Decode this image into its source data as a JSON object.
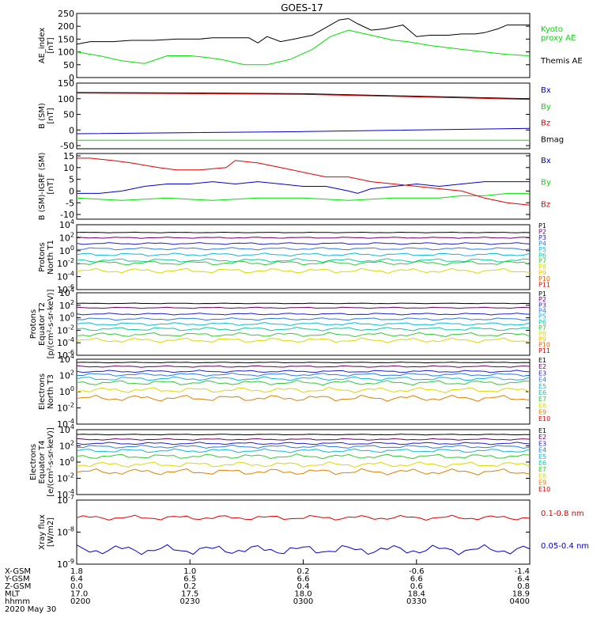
{
  "title": "GOES-17",
  "date_label": "2020 May 30",
  "colors": {
    "black": "#000000",
    "green": "#00e000",
    "blue": "#0000cc",
    "red": "#dd0000",
    "p": [
      "#000000",
      "#6a006a",
      "#2222cc",
      "#2a7de0",
      "#10b8d8",
      "#10c9a0",
      "#35c835",
      "#d9d900",
      "#f4c000",
      "#e06000",
      "#d00000"
    ],
    "e": [
      "#000000",
      "#6a006a",
      "#2222cc",
      "#2a7de0",
      "#10b8d8",
      "#10c9a0",
      "#35c835",
      "#d9d900",
      "#e08000",
      "#d00000"
    ]
  },
  "x_axis": {
    "ticks": [
      0,
      0.25,
      0.5,
      0.75,
      1.0
    ],
    "rows": [
      {
        "label": "X-GSM",
        "values": [
          "1.8",
          "1.0",
          "0.2",
          "-0.6",
          "-1.4"
        ]
      },
      {
        "label": "Y-GSM",
        "values": [
          "6.4",
          "6.5",
          "6.6",
          "6.6",
          "6.4"
        ]
      },
      {
        "label": "Z-GSM",
        "values": [
          "0.0",
          "0.2",
          "0.4",
          "0.6",
          "0.8"
        ]
      },
      {
        "label": "MLT",
        "values": [
          "17.0",
          "17.5",
          "18.0",
          "18.4",
          "18.9"
        ]
      },
      {
        "label": "hhmm",
        "values": [
          "0200",
          "0230",
          "0300",
          "0330",
          "0400"
        ]
      }
    ]
  },
  "chart_data": [
    {
      "type": "line",
      "panel": "ae",
      "ylabel": [
        "AE_index",
        "[nT]"
      ],
      "ylim": [
        0,
        250
      ],
      "log": false,
      "yticks": [
        0,
        50,
        100,
        150,
        200,
        250
      ],
      "legend": [
        {
          "text": "Kyoto",
          "color": "#00e000"
        },
        {
          "text": "proxy AE",
          "color": "#00e000"
        },
        {
          "text": "Themis AE",
          "color": "#000000"
        }
      ],
      "series": [
        {
          "name": "Themis AE",
          "color": "#000000",
          "x": [
            0,
            0.03,
            0.08,
            0.12,
            0.17,
            0.22,
            0.27,
            0.3,
            0.35,
            0.38,
            0.4,
            0.42,
            0.45,
            0.48,
            0.52,
            0.55,
            0.58,
            0.6,
            0.62,
            0.65,
            0.68,
            0.72,
            0.75,
            0.78,
            0.82,
            0.85,
            0.88,
            0.9,
            0.93,
            0.95,
            1.0
          ],
          "y": [
            130,
            140,
            140,
            145,
            145,
            150,
            150,
            155,
            155,
            155,
            135,
            160,
            140,
            150,
            165,
            195,
            225,
            230,
            210,
            185,
            190,
            205,
            160,
            165,
            165,
            170,
            170,
            175,
            190,
            205,
            205
          ]
        },
        {
          "name": "Kyoto proxy AE",
          "color": "#00e000",
          "x": [
            0,
            0.05,
            0.1,
            0.15,
            0.2,
            0.25,
            0.28,
            0.32,
            0.37,
            0.42,
            0.47,
            0.52,
            0.56,
            0.6,
            0.65,
            0.7,
            0.73,
            0.78,
            0.85,
            0.9,
            0.95,
            1.0
          ],
          "y": [
            100,
            85,
            65,
            55,
            85,
            85,
            80,
            70,
            50,
            50,
            70,
            110,
            160,
            185,
            165,
            145,
            140,
            125,
            110,
            100,
            90,
            85
          ]
        }
      ]
    },
    {
      "type": "line",
      "panel": "bsm",
      "ylabel": [
        "B (SM)",
        "[nT]"
      ],
      "ylim": [
        -60,
        150
      ],
      "log": false,
      "yticks": [
        -50,
        0,
        50,
        100,
        150
      ],
      "legend": [
        {
          "text": "Bx",
          "color": "#0000cc"
        },
        {
          "text": "By",
          "color": "#00e000"
        },
        {
          "text": "Bz",
          "color": "#dd0000"
        },
        {
          "text": "Bmag",
          "color": "#000000"
        }
      ],
      "series": [
        {
          "name": "Bx",
          "color": "#0000cc",
          "x": [
            0,
            0.5,
            1.0
          ],
          "y": [
            -12,
            -5,
            5
          ]
        },
        {
          "name": "By",
          "color": "#00e000",
          "x": [
            0,
            0.5,
            1.0
          ],
          "y": [
            -33,
            -33,
            -33
          ]
        },
        {
          "name": "Bmag",
          "color": "#000000",
          "x": [
            0,
            0.3,
            0.5,
            1.0
          ],
          "y": [
            120,
            118,
            116,
            100
          ]
        },
        {
          "name": "Bz",
          "color": "#dd0000",
          "x": [
            0,
            0.3,
            0.5,
            1.0
          ],
          "y": [
            118,
            116,
            114,
            98
          ]
        }
      ]
    },
    {
      "type": "line",
      "panel": "digrf",
      "ylabel": [
        "B (SM)-IGRF (SM)",
        "[nT]"
      ],
      "ylim": [
        -12,
        16
      ],
      "log": false,
      "yticks": [
        -10,
        -5,
        0,
        5,
        10,
        15
      ],
      "legend": [
        {
          "text": "Bx",
          "color": "#0000cc"
        },
        {
          "text": "By",
          "color": "#00e000"
        },
        {
          "text": "Bz",
          "color": "#dd0000"
        }
      ],
      "series": [
        {
          "name": "Bx",
          "color": "#0000cc",
          "x": [
            0,
            0.05,
            0.1,
            0.15,
            0.2,
            0.25,
            0.3,
            0.35,
            0.4,
            0.45,
            0.5,
            0.55,
            0.6,
            0.62,
            0.65,
            0.7,
            0.75,
            0.8,
            0.85,
            0.9,
            0.95,
            1.0
          ],
          "y": [
            -1,
            -1,
            0,
            2,
            3,
            3,
            4,
            3,
            4,
            3,
            2,
            2,
            0,
            -1,
            1,
            2,
            3,
            2,
            3,
            4,
            4,
            4
          ]
        },
        {
          "name": "By",
          "color": "#00e000",
          "x": [
            0,
            0.1,
            0.2,
            0.3,
            0.4,
            0.5,
            0.6,
            0.7,
            0.8,
            0.85,
            0.9,
            0.95,
            1.0
          ],
          "y": [
            -3,
            -4,
            -3,
            -4,
            -3,
            -3,
            -4,
            -3,
            -3,
            -2,
            -2,
            -1,
            -1
          ]
        },
        {
          "name": "Bz",
          "color": "#dd0000",
          "x": [
            0,
            0.03,
            0.08,
            0.12,
            0.18,
            0.22,
            0.27,
            0.33,
            0.35,
            0.4,
            0.45,
            0.5,
            0.55,
            0.6,
            0.65,
            0.7,
            0.75,
            0.8,
            0.85,
            0.9,
            0.95,
            1.0
          ],
          "y": [
            14,
            14,
            13,
            12,
            10,
            9,
            9,
            10,
            13,
            12,
            10,
            8,
            6,
            6,
            4,
            3,
            2,
            1,
            0,
            -3,
            -5,
            -6
          ]
        }
      ]
    },
    {
      "type": "line",
      "panel": "p_t1",
      "ylabel": [
        "Protons",
        "North T1"
      ],
      "ylim": [
        -6,
        4
      ],
      "log": true,
      "yticks": [
        -6,
        -4,
        -2,
        0,
        2,
        4
      ],
      "legend": [
        {
          "text": "P1",
          "color": "#000000"
        },
        {
          "text": "P2",
          "color": "#6a006a"
        },
        {
          "text": "P3",
          "color": "#2222cc"
        },
        {
          "text": "P4",
          "color": "#2a7de0"
        },
        {
          "text": "P5",
          "color": "#10b8d8"
        },
        {
          "text": "P6",
          "color": "#10c9a0"
        },
        {
          "text": "P7",
          "color": "#35c835"
        },
        {
          "text": "P8",
          "color": "#d9d900"
        },
        {
          "text": "P9",
          "color": "#f4c000"
        },
        {
          "text": "P10",
          "color": "#e06000"
        },
        {
          "text": "P11",
          "color": "#d00000"
        }
      ],
      "series": [
        {
          "name": "P1",
          "color": "#000000",
          "level": 2.8
        },
        {
          "name": "P2",
          "color": "#6a006a",
          "level": 2.0
        },
        {
          "name": "P3",
          "color": "#2222cc",
          "level": 1.1
        },
        {
          "name": "P4",
          "color": "#2a7de0",
          "level": 0.3
        },
        {
          "name": "P5",
          "color": "#10b8d8",
          "level": -0.6
        },
        {
          "name": "P6",
          "color": "#10c9a0",
          "level": -1.5
        },
        {
          "name": "P7",
          "color": "#35c835",
          "level": -1.9
        },
        {
          "name": "P8",
          "color": "#d9d900",
          "level": -3.1
        }
      ]
    },
    {
      "type": "line",
      "panel": "p_t2",
      "ylabel": [
        "Protons",
        "Equator T2",
        "[p/(cm²-s-sr-keV)]"
      ],
      "ylim": [
        -6,
        4
      ],
      "log": true,
      "yticks": [
        -6,
        -4,
        -2,
        0,
        2,
        4
      ],
      "legend": [
        {
          "text": "P1",
          "color": "#000000"
        },
        {
          "text": "P2",
          "color": "#6a006a"
        },
        {
          "text": "P3",
          "color": "#2222cc"
        },
        {
          "text": "P4",
          "color": "#2a7de0"
        },
        {
          "text": "P5",
          "color": "#10b8d8"
        },
        {
          "text": "P6",
          "color": "#10c9a0"
        },
        {
          "text": "P7",
          "color": "#35c835"
        },
        {
          "text": "P8",
          "color": "#d9d900"
        },
        {
          "text": "P9",
          "color": "#f4c000"
        },
        {
          "text": "P10",
          "color": "#e06000"
        },
        {
          "text": "P11",
          "color": "#d00000"
        }
      ],
      "series": [
        {
          "name": "P1",
          "color": "#000000",
          "level": 2.3
        },
        {
          "name": "P2",
          "color": "#6a006a",
          "level": 1.6
        },
        {
          "name": "P3",
          "color": "#2222cc",
          "level": 0.6
        },
        {
          "name": "P4",
          "color": "#2a7de0",
          "level": -0.2
        },
        {
          "name": "P5",
          "color": "#10b8d8",
          "level": -1.0
        },
        {
          "name": "P6",
          "color": "#10c9a0",
          "level": -1.8
        },
        {
          "name": "P7",
          "color": "#35c835",
          "level": -2.7
        },
        {
          "name": "P8",
          "color": "#d9d900",
          "level": -3.6
        }
      ]
    },
    {
      "type": "line",
      "panel": "e_t3",
      "ylabel": [
        "Electrons",
        "North T3"
      ],
      "ylim": [
        -4,
        4
      ],
      "log": true,
      "yticks": [
        -4,
        -2,
        0,
        2,
        4
      ],
      "legend": [
        {
          "text": "E1",
          "color": "#000000"
        },
        {
          "text": "E2",
          "color": "#6a006a"
        },
        {
          "text": "E3",
          "color": "#2222cc"
        },
        {
          "text": "E4",
          "color": "#2a7de0"
        },
        {
          "text": "E5",
          "color": "#10b8d8"
        },
        {
          "text": "E6",
          "color": "#10c9a0"
        },
        {
          "text": "E7",
          "color": "#35c835"
        },
        {
          "text": "E8",
          "color": "#d9d900"
        },
        {
          "text": "E9",
          "color": "#e08000"
        },
        {
          "text": "E10",
          "color": "#d00000"
        }
      ],
      "series": [
        {
          "name": "E1",
          "color": "#000000",
          "level": 3.6
        },
        {
          "name": "E2",
          "color": "#6a006a",
          "level": 3.1
        },
        {
          "name": "E3",
          "color": "#2222cc",
          "level": 2.5
        },
        {
          "name": "E4",
          "color": "#2a7de0",
          "level": 2.1
        },
        {
          "name": "E5",
          "color": "#10b8d8",
          "level": 1.6
        },
        {
          "name": "E6",
          "color": "#35c835",
          "level": 1.1
        },
        {
          "name": "E7",
          "color": "#d9d900",
          "level": 0.2
        },
        {
          "name": "E8",
          "color": "#e08000",
          "level": -0.8
        }
      ]
    },
    {
      "type": "line",
      "panel": "e_t4",
      "ylabel": [
        "Electrons",
        "Equator T4",
        "[e/(cm²-s-sr-keV)]"
      ],
      "ylim": [
        -4,
        4
      ],
      "log": true,
      "yticks": [
        -4,
        -2,
        0,
        2,
        4
      ],
      "legend": [
        {
          "text": "E1",
          "color": "#000000"
        },
        {
          "text": "E2",
          "color": "#6a006a"
        },
        {
          "text": "E3",
          "color": "#2222cc"
        },
        {
          "text": "E4",
          "color": "#2a7de0"
        },
        {
          "text": "E5",
          "color": "#10b8d8"
        },
        {
          "text": "E6",
          "color": "#10c9a0"
        },
        {
          "text": "E7",
          "color": "#35c835"
        },
        {
          "text": "E8",
          "color": "#d9d900"
        },
        {
          "text": "E9",
          "color": "#e08000"
        },
        {
          "text": "E10",
          "color": "#d00000"
        }
      ],
      "series": [
        {
          "name": "E1",
          "color": "#000000",
          "level": 3.4
        },
        {
          "name": "E2",
          "color": "#6a006a",
          "level": 2.8
        },
        {
          "name": "E3",
          "color": "#2222cc",
          "level": 2.3
        },
        {
          "name": "E4",
          "color": "#2a7de0",
          "level": 1.9
        },
        {
          "name": "E5",
          "color": "#10b8d8",
          "level": 1.4
        },
        {
          "name": "E6",
          "color": "#35c835",
          "level": 0.7
        },
        {
          "name": "E7",
          "color": "#d9d900",
          "level": -0.3
        },
        {
          "name": "E8",
          "color": "#e08000",
          "level": -1.2
        }
      ]
    },
    {
      "type": "line",
      "panel": "xray",
      "ylabel": [
        "Xray flux",
        "[W/m2]"
      ],
      "ylim": [
        -9,
        -7
      ],
      "log": true,
      "yticks": [
        -9,
        -8,
        -7
      ],
      "legend": [
        {
          "text": "0.1-0.8 nm",
          "color": "#dd0000"
        },
        {
          "text": "0.05-0.4 nm",
          "color": "#0000cc"
        }
      ],
      "series": [
        {
          "name": "0.1-0.8 nm",
          "color": "#dd0000",
          "level": -7.55
        },
        {
          "name": "0.05-0.4 nm",
          "color": "#0000cc",
          "level": -8.55
        }
      ]
    }
  ]
}
